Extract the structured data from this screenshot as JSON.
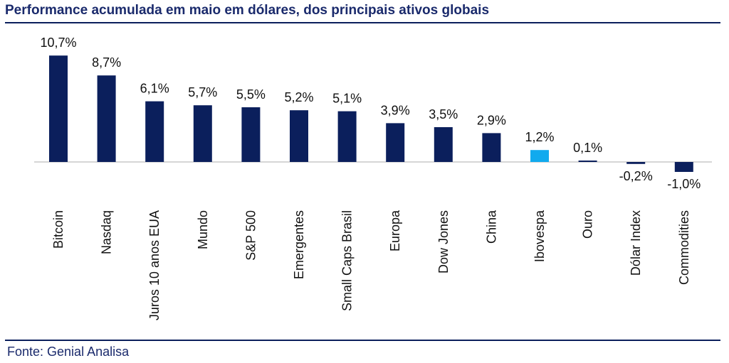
{
  "title": "Performance acumulada em maio em dólares, dos principais ativos globais",
  "source": "Fonte: Genial Analisa",
  "colors": {
    "default_bar": "#0b1f5c",
    "highlight_bar": "#11aaee",
    "title": "#1a2a6c"
  },
  "chart_data": {
    "type": "bar",
    "categories": [
      "Bitcoin",
      "Nasdaq",
      "Juros 10 anos EUA",
      "Mundo",
      "S&P 500",
      "Emergentes",
      "Small Caps Brasil",
      "Europa",
      "Dow Jones",
      "China",
      "Ibovespa",
      "Ouro",
      "Dólar Index",
      "Commodities"
    ],
    "values": [
      10.7,
      8.7,
      6.1,
      5.7,
      5.5,
      5.2,
      5.1,
      3.9,
      3.5,
      2.9,
      1.2,
      0.1,
      -0.2,
      -1.0
    ],
    "data_labels": [
      "10,7%",
      "8,7%",
      "6,1%",
      "5,7%",
      "5,5%",
      "5,2%",
      "5,1%",
      "3,9%",
      "3,5%",
      "2,9%",
      "1,2%",
      "0,1%",
      "-0,2%",
      "-1,0%"
    ],
    "highlight": "Ibovespa",
    "orientation": "vertical",
    "category_label_rotation": "vertical",
    "grid": false,
    "legend": "none"
  }
}
